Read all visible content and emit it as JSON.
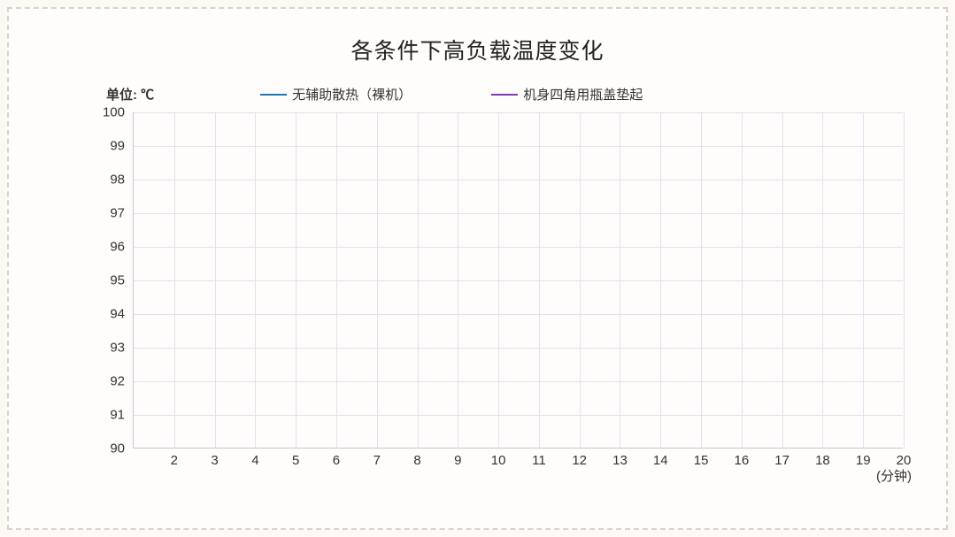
{
  "chart": {
    "type": "line",
    "title": "各条件下高负载温度变化",
    "unit_label": "单位: ℃",
    "xaxis_label": "(分钟)",
    "background_color": "#fefdfb",
    "page_background": "#fcf9f4",
    "border_style": "dashed",
    "border_color": "#d6d2cc",
    "grid_color": "#e3e1ee",
    "axis_color": "#c9c5d6",
    "text_color": "#333333",
    "title_fontsize": 25,
    "label_fontsize": 15,
    "ylim": [
      90,
      100
    ],
    "ytick_step": 1,
    "yticks": [
      100,
      99,
      98,
      97,
      96,
      95,
      94,
      93,
      92,
      91,
      90
    ],
    "xlim": [
      1,
      20
    ],
    "xticks": [
      2,
      3,
      4,
      5,
      6,
      7,
      8,
      9,
      10,
      11,
      12,
      13,
      14,
      15,
      16,
      17,
      18,
      19,
      20
    ],
    "series": [
      {
        "name": "无辅助散热（裸机）",
        "color": "#1f77b4",
        "values": []
      },
      {
        "name": "机身四角用瓶盖垫起",
        "color": "#7b3fb3",
        "values": []
      }
    ]
  }
}
